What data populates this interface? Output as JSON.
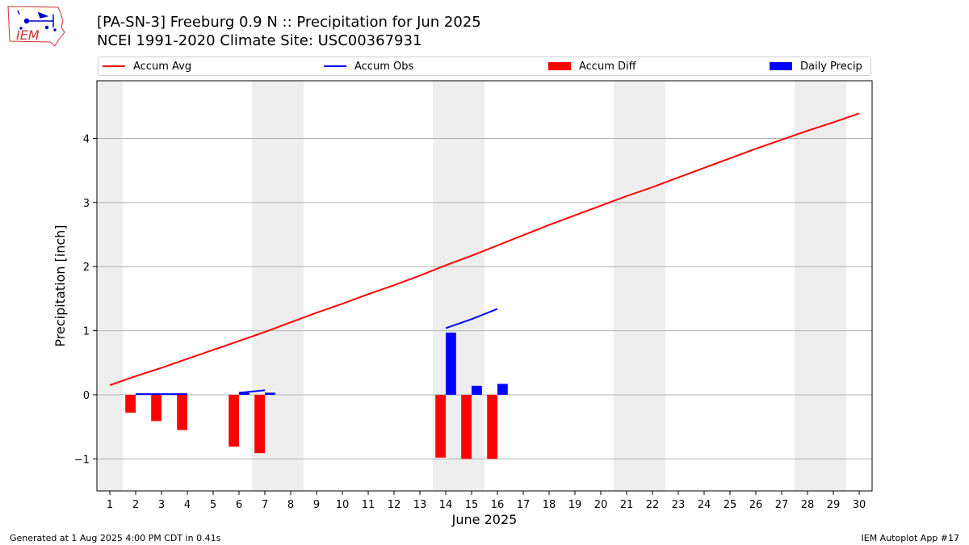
{
  "header": {
    "title_line1": "[PA-SN-3] Freeburg 0.9 N :: Precipitation for Jun 2025",
    "title_line2": "NCEI 1991-2020 Climate Site: USC00367931",
    "logo_text": "IEM"
  },
  "footer": {
    "generated": "Generated at 1 Aug 2025 4:00 PM CDT in 0.41s",
    "app": "IEM Autoplot App #17"
  },
  "colors": {
    "accum_avg": "#ff0000",
    "accum_obs": "#0000ff",
    "accum_diff": "#ff0000",
    "daily_precip": "#0000ff",
    "weekend_shade": "#eeeeee",
    "grid": "#b0b0b0"
  },
  "chart_data": {
    "type": "bar",
    "title": "[PA-SN-3] Freeburg 0.9 N :: Precipitation for Jun 2025",
    "subtitle": "NCEI 1991-2020 Climate Site: USC00367931",
    "xlabel": "June 2025",
    "ylabel": "Precipitation [inch]",
    "xlim": [
      0.5,
      30.5
    ],
    "ylim": [
      -1.5,
      4.9
    ],
    "x_ticks": [
      1,
      2,
      3,
      4,
      5,
      6,
      7,
      8,
      9,
      10,
      11,
      12,
      13,
      14,
      15,
      16,
      17,
      18,
      19,
      20,
      21,
      22,
      23,
      24,
      25,
      26,
      27,
      28,
      29,
      30
    ],
    "y_ticks": [
      -1,
      0,
      1,
      2,
      3,
      4
    ],
    "y_tick_labels": [
      "−1",
      "0",
      "1",
      "2",
      "3",
      "4"
    ],
    "grid": "horizontal",
    "legend_placement": "top",
    "weekend_spans": [
      [
        0.5,
        1.5
      ],
      [
        6.5,
        8.5
      ],
      [
        13.5,
        15.5
      ],
      [
        20.5,
        22.5
      ],
      [
        27.5,
        29.5
      ]
    ],
    "series": [
      {
        "name": "Accum Avg",
        "kind": "line",
        "x": [
          1,
          2,
          3,
          4,
          5,
          6,
          7,
          8,
          9,
          10,
          11,
          12,
          13,
          14,
          15,
          16,
          17,
          18,
          19,
          20,
          21,
          22,
          23,
          24,
          25,
          26,
          27,
          28,
          29,
          30
        ],
        "values": [
          0.15,
          0.29,
          0.42,
          0.56,
          0.7,
          0.84,
          0.98,
          1.13,
          1.28,
          1.42,
          1.57,
          1.71,
          1.86,
          2.02,
          2.17,
          2.33,
          2.49,
          2.65,
          2.8,
          2.95,
          3.1,
          3.24,
          3.39,
          3.54,
          3.69,
          3.84,
          3.98,
          4.12,
          4.25,
          4.39
        ]
      },
      {
        "name": "Accum Obs",
        "kind": "line",
        "segments": [
          {
            "x": [
              2,
              3,
              4
            ],
            "values": [
              0.01,
              0.01,
              0.01
            ]
          },
          {
            "x": [
              6,
              7
            ],
            "values": [
              0.03,
              0.07
            ]
          },
          {
            "x": [
              7,
              7.4
            ],
            "values": [
              0.02,
              0.02
            ]
          },
          {
            "x": [
              14,
              15,
              16
            ],
            "values": [
              1.04,
              1.18,
              1.34
            ]
          }
        ]
      },
      {
        "name": "Accum Diff",
        "kind": "bar",
        "x": [
          2,
          3,
          4,
          6,
          7,
          14,
          15,
          16
        ],
        "values": [
          -0.28,
          -0.41,
          -0.55,
          -0.81,
          -0.91,
          -0.98,
          -1.0,
          -1.0
        ]
      },
      {
        "name": "Daily Precip",
        "kind": "bar",
        "x": [
          2,
          3,
          4,
          6,
          7,
          14,
          15,
          16
        ],
        "values": [
          0,
          0,
          0,
          0.03,
          0.02,
          0.97,
          0.14,
          0.17
        ]
      }
    ]
  }
}
